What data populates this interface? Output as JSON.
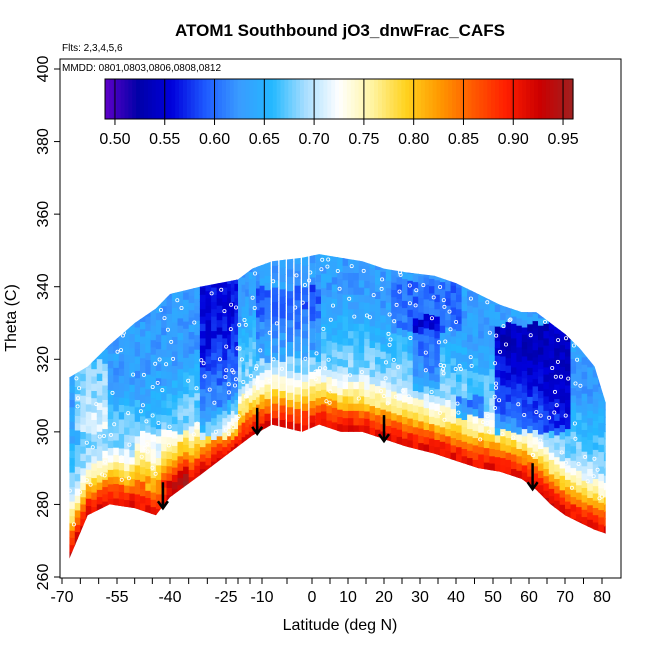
{
  "chart_data": {
    "type": "heatmap",
    "title": "ATOM1 Southbound jO3_dnwFrac_CAFS",
    "annotations": {
      "flights": "Flts: 2,3,4,5,6",
      "dates": "MMDD: 0801,0803,0806,0808,0812"
    },
    "xlabel": "Latitude (deg N)",
    "ylabel": "Theta (C)",
    "xlim": [
      -70,
      85
    ],
    "ylim": [
      260,
      405
    ],
    "x_tick_labels": [
      "-70",
      "-55",
      "-40",
      "-25",
      "-10",
      "0",
      "10",
      "20",
      "30",
      "40",
      "50",
      "60",
      "70",
      "80"
    ],
    "x_tick_values": [
      -70,
      -55,
      -40,
      -25,
      -10,
      0,
      10,
      20,
      30,
      40,
      50,
      60,
      70,
      80
    ],
    "x_minor_step": 5,
    "y_ticks": [
      260,
      280,
      300,
      320,
      340,
      360,
      380,
      400
    ],
    "grid": false,
    "colorbar": {
      "placement": "top-inside",
      "range": [
        0.49,
        0.96
      ],
      "tick_labels": [
        "0.50",
        "0.55",
        "0.60",
        "0.65",
        "0.70",
        "0.75",
        "0.80",
        "0.85",
        "0.90",
        "0.95"
      ],
      "tick_values": [
        0.5,
        0.55,
        0.6,
        0.65,
        0.7,
        0.75,
        0.8,
        0.85,
        0.9,
        0.95
      ],
      "colors": [
        "#5f00c8",
        "#0000a8",
        "#0000dc",
        "#1e5aff",
        "#3a9bff",
        "#23b8ff",
        "#a8deff",
        "#ffffff",
        "#fff4a0",
        "#ffd21e",
        "#ff9900",
        "#ff5a00",
        "#ff1e00",
        "#cc0000",
        "#a02020"
      ]
    },
    "boundary": {
      "latitude": [
        -68,
        -63,
        -57,
        -50,
        -44,
        -40,
        -32,
        -20,
        -14,
        -8,
        -2,
        2,
        8,
        14,
        20,
        26,
        34,
        40,
        46,
        52,
        58,
        62,
        66,
        70,
        74,
        78,
        81
      ],
      "theta_bottom": [
        265,
        277,
        280,
        279,
        277,
        282,
        288,
        296,
        299,
        302,
        300,
        302,
        300,
        300,
        298,
        296,
        294,
        292,
        290,
        289,
        287,
        284,
        280,
        277,
        275,
        273,
        272
      ],
      "theta_top": [
        315,
        318,
        324,
        330,
        334,
        338,
        340,
        342,
        345,
        347,
        348,
        349,
        348,
        347,
        345,
        344,
        343,
        341,
        338,
        335,
        333,
        333,
        330,
        327,
        323,
        318,
        308
      ]
    },
    "arrows_latitude": [
      -42,
      -12,
      20,
      61
    ]
  }
}
